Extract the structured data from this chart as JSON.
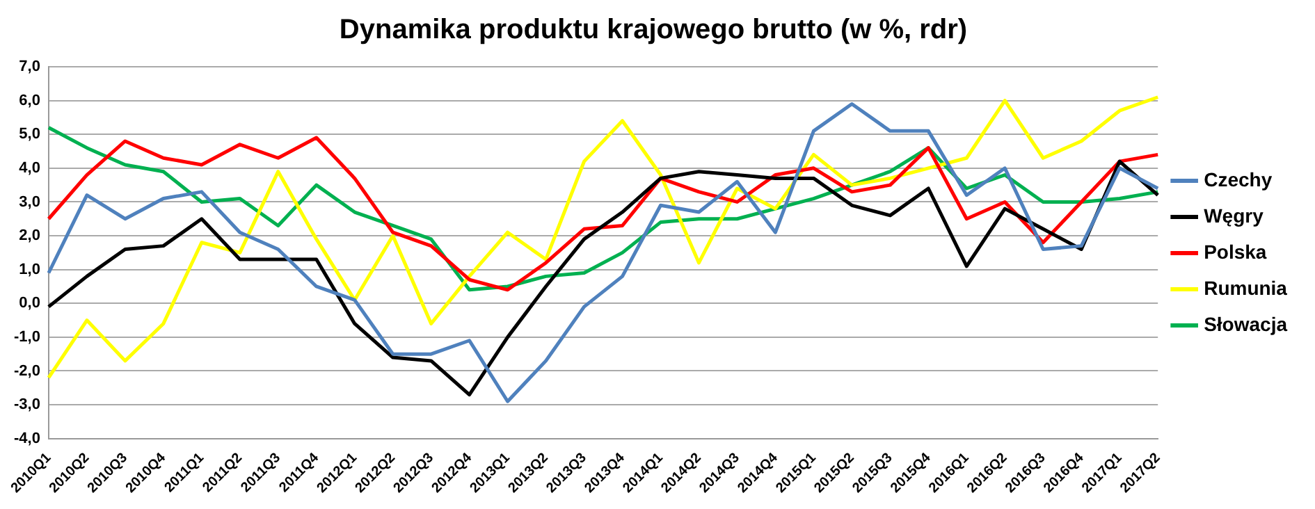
{
  "chart_data": {
    "type": "line",
    "title": "Dynamika produktu krajowego brutto (w %, rdr)",
    "categories": [
      "2010Q1",
      "2010Q2",
      "2010Q3",
      "2010Q4",
      "2011Q1",
      "2011Q2",
      "2011Q3",
      "2011Q4",
      "2012Q1",
      "2012Q2",
      "2012Q3",
      "2012Q4",
      "2013Q1",
      "2013Q2",
      "2013Q3",
      "2013Q4",
      "2014Q1",
      "2014Q2",
      "2014Q3",
      "2014Q4",
      "2015Q1",
      "2015Q2",
      "2015Q3",
      "2015Q4",
      "2016Q1",
      "2016Q2",
      "2016Q3",
      "2016Q4",
      "2017Q1",
      "2017Q2"
    ],
    "series": [
      {
        "name": "Czechy",
        "color": "#4f81bd",
        "values": [
          0.9,
          3.2,
          2.5,
          3.1,
          3.3,
          2.1,
          1.6,
          0.5,
          0.1,
          -1.5,
          -1.5,
          -1.1,
          -2.9,
          -1.7,
          -0.1,
          0.8,
          2.9,
          2.7,
          3.6,
          2.1,
          5.1,
          5.9,
          5.1,
          5.1,
          3.2,
          4.0,
          1.6,
          1.7,
          4.0,
          3.4
        ]
      },
      {
        "name": "Węgry",
        "color": "#000000",
        "values": [
          -0.1,
          0.8,
          1.6,
          1.7,
          2.5,
          1.3,
          1.3,
          1.3,
          -0.6,
          -1.6,
          -1.7,
          -2.7,
          -1.0,
          0.5,
          1.9,
          2.7,
          3.7,
          3.9,
          3.8,
          3.7,
          3.7,
          2.9,
          2.6,
          3.4,
          1.1,
          2.8,
          2.2,
          1.6,
          4.2,
          3.2
        ]
      },
      {
        "name": "Polska",
        "color": "#ff0000",
        "values": [
          2.5,
          3.8,
          4.8,
          4.3,
          4.1,
          4.7,
          4.3,
          4.9,
          3.7,
          2.1,
          1.7,
          0.7,
          0.4,
          1.2,
          2.2,
          2.3,
          3.7,
          3.3,
          3.0,
          3.8,
          4.0,
          3.3,
          3.5,
          4.6,
          2.5,
          3.0,
          1.8,
          3.0,
          4.2,
          4.4
        ]
      },
      {
        "name": "Rumunia",
        "color": "#ffff00",
        "values": [
          -2.2,
          -0.5,
          -1.7,
          -0.6,
          1.8,
          1.5,
          3.9,
          1.9,
          0.1,
          2.0,
          -0.6,
          0.8,
          2.1,
          1.3,
          4.2,
          5.4,
          3.8,
          1.2,
          3.4,
          2.8,
          4.4,
          3.5,
          3.7,
          4.0,
          4.3,
          6.0,
          4.3,
          4.8,
          5.7,
          6.1
        ]
      },
      {
        "name": "Słowacja",
        "color": "#00b050",
        "values": [
          5.2,
          4.6,
          4.1,
          3.9,
          3.0,
          3.1,
          2.3,
          3.5,
          2.7,
          2.3,
          1.9,
          0.4,
          0.5,
          0.8,
          0.9,
          1.5,
          2.4,
          2.5,
          2.5,
          2.8,
          3.1,
          3.5,
          3.9,
          4.6,
          3.4,
          3.8,
          3.0,
          3.0,
          3.1,
          3.3
        ]
      }
    ],
    "ylim": [
      -4,
      7
    ],
    "yticks": [
      {
        "value": -4,
        "label": "-4,0"
      },
      {
        "value": -3,
        "label": "-3,0"
      },
      {
        "value": -2,
        "label": "-2,0"
      },
      {
        "value": -1,
        "label": "-1,0"
      },
      {
        "value": 0,
        "label": "0,0"
      },
      {
        "value": 1,
        "label": "1,0"
      },
      {
        "value": 2,
        "label": "2,0"
      },
      {
        "value": 3,
        "label": "3,0"
      },
      {
        "value": 4,
        "label": "4,0"
      },
      {
        "value": 5,
        "label": "5,0"
      },
      {
        "value": 6,
        "label": "6,0"
      },
      {
        "value": 7,
        "label": "7,0"
      }
    ],
    "grid": "y",
    "legend": "right",
    "marker": "none",
    "line_style": "solid"
  }
}
